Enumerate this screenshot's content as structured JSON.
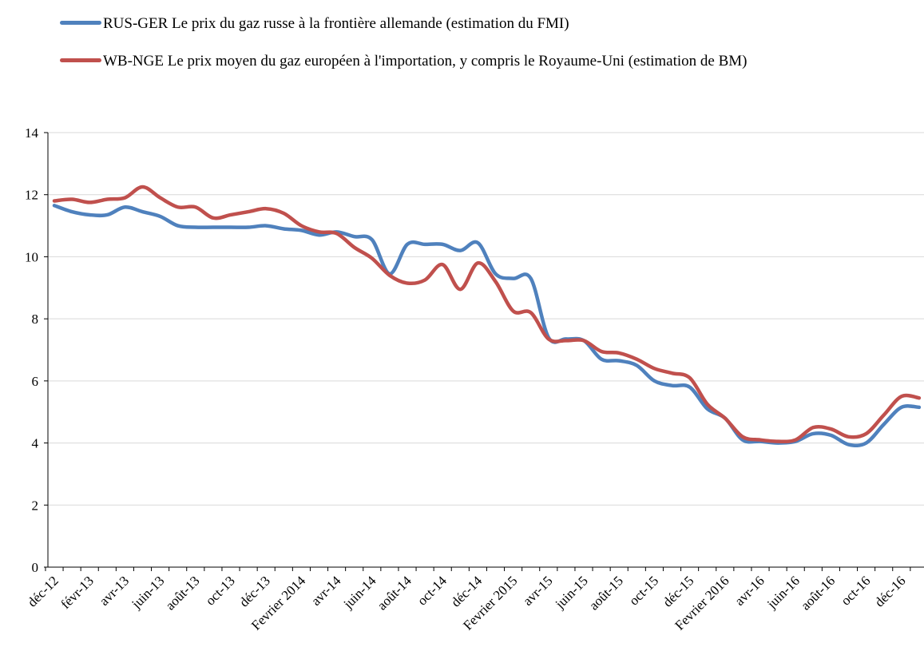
{
  "chart_data": {
    "type": "line",
    "categories": [
      "déc-12",
      null,
      "févr-13",
      null,
      "avr-13",
      null,
      "juin-13",
      null,
      "août-13",
      null,
      "oct-13",
      null,
      "déc-13",
      null,
      "Fevrier 2014",
      null,
      "avr-14",
      null,
      "juin-14",
      null,
      "août-14",
      null,
      "oct-14",
      null,
      "déc-14",
      null,
      "Fevrier 2015",
      null,
      "avr-15",
      null,
      "juin-15",
      null,
      "août-15",
      null,
      "oct-15",
      null,
      "déc-15",
      null,
      "Fevrier 2016",
      null,
      "avr-16",
      null,
      "juin-16",
      null,
      "août-16",
      null,
      "oct-16",
      null,
      "déc-16",
      null
    ],
    "series": [
      {
        "name": "RUS-GER Le prix du gaz russe à la frontière allemande (estimation du FMI)",
        "color": "#4f81bd",
        "values": [
          11.65,
          11.45,
          11.35,
          11.35,
          11.6,
          11.45,
          11.3,
          11.0,
          10.95,
          10.95,
          10.95,
          10.95,
          11.0,
          10.9,
          10.85,
          10.7,
          10.8,
          10.65,
          10.55,
          9.45,
          10.4,
          10.4,
          10.4,
          10.2,
          10.45,
          9.45,
          9.3,
          9.3,
          7.4,
          7.35,
          7.3,
          6.7,
          6.65,
          6.5,
          6.0,
          5.85,
          5.8,
          5.1,
          4.8,
          4.1,
          4.05,
          4.0,
          4.05,
          4.3,
          4.25,
          3.95,
          4.0,
          4.6,
          5.15,
          5.15
        ]
      },
      {
        "name": "WB-NGE  Le prix moyen du gaz européen à l'importation, y compris le Royaume-Uni (estimation de BM)",
        "color": "#c0504d",
        "values": [
          11.8,
          11.85,
          11.75,
          11.85,
          11.9,
          12.25,
          11.9,
          11.6,
          11.6,
          11.25,
          11.35,
          11.45,
          11.55,
          11.4,
          11.0,
          10.8,
          10.75,
          10.3,
          9.95,
          9.4,
          9.15,
          9.25,
          9.75,
          8.95,
          9.8,
          9.2,
          8.25,
          8.2,
          7.35,
          7.3,
          7.3,
          6.95,
          6.9,
          6.7,
          6.4,
          6.25,
          6.1,
          5.25,
          4.8,
          4.2,
          4.1,
          4.05,
          4.1,
          4.5,
          4.45,
          4.2,
          4.3,
          4.9,
          5.5,
          5.45
        ]
      }
    ],
    "ylim": [
      0,
      14
    ],
    "yticks": [
      0,
      2,
      4,
      6,
      8,
      10,
      12,
      14
    ],
    "grid": true
  }
}
